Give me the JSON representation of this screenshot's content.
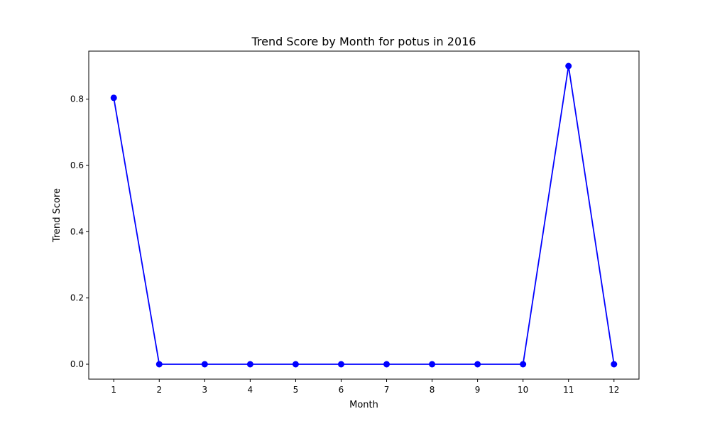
{
  "chart_data": {
    "type": "line",
    "title": "Trend Score by Month for potus in 2016",
    "xlabel": "Month",
    "ylabel": "Trend Score",
    "x": [
      1,
      2,
      3,
      4,
      5,
      6,
      7,
      8,
      9,
      10,
      11,
      12
    ],
    "series": [
      {
        "values": [
          0.804,
          0,
          0,
          0,
          0,
          0,
          0,
          0,
          0,
          0,
          0.9,
          0
        ],
        "color": "#0000ff",
        "marker": "circle"
      }
    ],
    "xticks": [
      "1",
      "2",
      "3",
      "4",
      "5",
      "6",
      "7",
      "8",
      "9",
      "10",
      "11",
      "12"
    ],
    "yticks": [
      {
        "value": 0.0,
        "label": "0.0"
      },
      {
        "value": 0.2,
        "label": "0.2"
      },
      {
        "value": 0.4,
        "label": "0.4"
      },
      {
        "value": 0.6,
        "label": "0.6"
      },
      {
        "value": 0.8,
        "label": "0.8"
      }
    ],
    "xlim": [
      0.45,
      12.55
    ],
    "ylim": [
      -0.045,
      0.945
    ],
    "grid": false,
    "legend": false
  }
}
